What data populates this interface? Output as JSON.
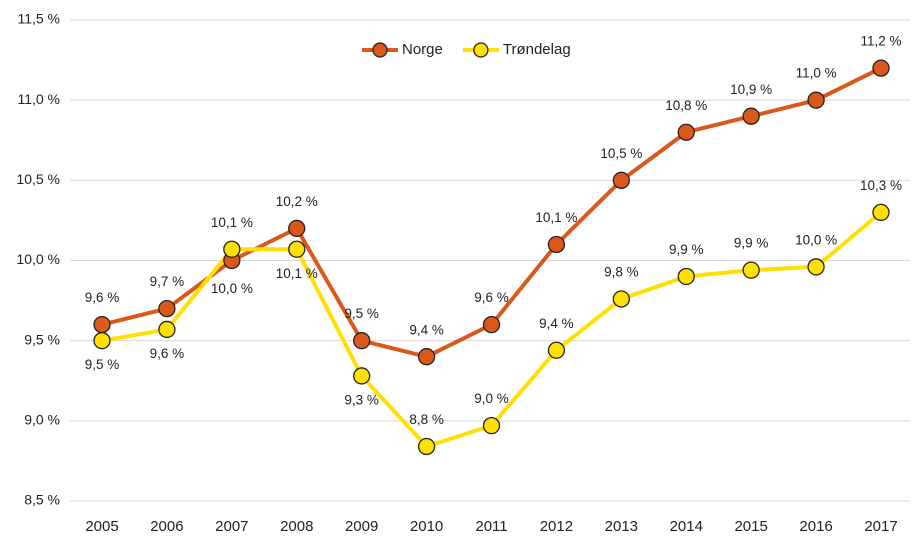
{
  "chart_data": {
    "type": "line",
    "categories": [
      "2005",
      "2006",
      "2007",
      "2008",
      "2009",
      "2010",
      "2011",
      "2012",
      "2013",
      "2014",
      "2015",
      "2016",
      "2017"
    ],
    "series": [
      {
        "name": "Norge",
        "color": "#d9581a",
        "values": [
          9.6,
          9.7,
          10.0,
          10.2,
          9.5,
          9.4,
          9.6,
          10.1,
          10.5,
          10.8,
          10.9,
          11.0,
          11.2
        ],
        "value_labels": [
          "9,6 %",
          "9,7 %",
          "10,0 %",
          "10,2 %",
          "9,5 %",
          "9,4 %",
          "9,6 %",
          "10,1 %",
          "10,5 %",
          "10,8 %",
          "10,9 %",
          "11,0 %",
          "11,2 %"
        ]
      },
      {
        "name": "Trøndelag",
        "color": "#ffe000",
        "values": [
          9.5,
          9.57,
          10.07,
          10.07,
          9.28,
          8.84,
          8.97,
          9.44,
          9.76,
          9.9,
          9.94,
          9.96,
          10.3
        ],
        "value_labels": [
          "9,5 %",
          "9,6 %",
          "10,1 %",
          "10,1 %",
          "9,3 %",
          "8,8 %",
          "9,0 %",
          "9,4 %",
          "9,8 %",
          "9,9 %",
          "9,9 %",
          "10,0 %",
          "10,3 %"
        ]
      }
    ],
    "ylim": [
      8.5,
      11.5
    ],
    "yticks": [
      {
        "value": 8.5,
        "label": "8,5 %"
      },
      {
        "value": 9.0,
        "label": "9,0 %"
      },
      {
        "value": 9.5,
        "label": "9,5 %"
      },
      {
        "value": 10.0,
        "label": "10,0 %"
      },
      {
        "value": 10.5,
        "label": "10,5 %"
      },
      {
        "value": 11.0,
        "label": "11,0 %"
      },
      {
        "value": 11.5,
        "label": "11,5 %"
      }
    ],
    "grid": true,
    "legend": "top"
  }
}
